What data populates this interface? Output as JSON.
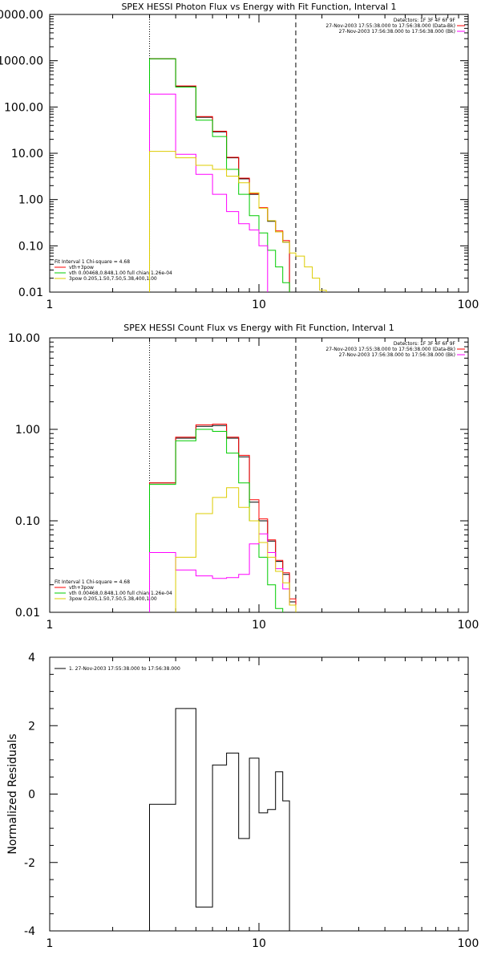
{
  "chart_data": [
    {
      "type": "line",
      "title": "SPEX HESSI Photon Flux vs Energy with Fit Function, Interval 1",
      "xscale": "log",
      "yscale": "log",
      "xlim": [
        1,
        100
      ],
      "ylim": [
        0.01,
        10000
      ],
      "x_ticks": [
        "1",
        "10",
        "100"
      ],
      "y_ticks": [
        "0.01",
        "0.10",
        "1.00",
        "10.00",
        "100.00",
        "1000.00",
        "10000.00"
      ],
      "vlines": [
        {
          "x": 3.0,
          "style": "dotted"
        },
        {
          "x": 15.0,
          "style": "dashed"
        }
      ],
      "legend_right": [
        "Detectors: 1F 3F 4F 6F 9F",
        "27-Nov-2003 17:55:38.000 to 17:56:38.000 (Data-Bk)",
        "27-Nov-2003 17:56:38.000 to 17:56:38.000 (Bk)"
      ],
      "legend_left": [
        "Fit Interval 1   Chi-square = 4.68",
        "vth+3pow",
        "vth 0.00468,0.848,1.00  full chian 1.26e-04",
        "3pow 0.205,1.50,7.50,5.38,400,1.00"
      ],
      "x_edges": [
        3,
        4,
        5,
        6,
        7,
        8,
        9,
        10,
        11,
        12,
        13,
        14,
        15,
        16.5,
        18,
        19.5,
        21,
        22.5,
        24
      ],
      "series": [
        {
          "color": "#000000",
          "values": [
            1100,
            280,
            60,
            29,
            8,
            2.8,
            1.3,
            0.65,
            0.34,
            0.2,
            0.12,
            null,
            null,
            null,
            null,
            null,
            null,
            null
          ]
        },
        {
          "color": "#ff0000",
          "values": [
            1100,
            285,
            62,
            30,
            8.2,
            2.9,
            1.35,
            0.67,
            0.35,
            0.21,
            0.13,
            null,
            null,
            null,
            null,
            null,
            null,
            null
          ]
        },
        {
          "color": "#00cc00",
          "values": [
            1100,
            270,
            52,
            23,
            4.5,
            1.3,
            0.45,
            0.19,
            0.08,
            0.035,
            0.016,
            0.006,
            null,
            null,
            null,
            null,
            null,
            null
          ]
        },
        {
          "color": "#ff00ff",
          "values": [
            190,
            9.5,
            3.5,
            1.3,
            0.55,
            0.3,
            0.22,
            0.1,
            null,
            null,
            null,
            null,
            null,
            null,
            null,
            null,
            null,
            null
          ]
        },
        {
          "color": "#ddcc00",
          "values": [
            11,
            8,
            5.5,
            4.5,
            3.2,
            2.3,
            1.4,
            0.65,
            0.35,
            0.2,
            0.12,
            0.07,
            0.06,
            0.035,
            0.02,
            0.011,
            0.006,
            null
          ]
        }
      ]
    },
    {
      "type": "line",
      "title": "SPEX HESSI Count Flux vs Energy with Fit Function, Interval 1",
      "xscale": "log",
      "yscale": "log",
      "xlim": [
        1,
        100
      ],
      "ylim": [
        0.01,
        10
      ],
      "x_ticks": [
        "1",
        "10",
        "100"
      ],
      "y_ticks": [
        "0.01",
        "0.10",
        "1.00",
        "10.00"
      ],
      "vlines": [
        {
          "x": 3.0,
          "style": "dotted"
        },
        {
          "x": 15.0,
          "style": "dashed"
        }
      ],
      "legend_right": [
        "Detectors: 1F 3F 4F 6F 9F",
        "27-Nov-2003 17:55:38.000 to 17:56:38.000 (Data-Bk)",
        "27-Nov-2003 17:56:38.000 to 17:56:38.000 (Bk)"
      ],
      "legend_left": [
        "Fit Interval 1   Chi-square = 4.68",
        "vth+3pow",
        "vth 0.00468,0.848,1.00  full chian 1.26e-04",
        "3pow 0.205,1.50,7.50,5.38,400,1.00"
      ],
      "x_edges": [
        3,
        4,
        5,
        6,
        7,
        8,
        9,
        10,
        11,
        12,
        13,
        14,
        15
      ],
      "series": [
        {
          "color": "#000000",
          "values": [
            0.26,
            0.8,
            1.08,
            1.1,
            0.8,
            0.5,
            0.16,
            0.1,
            0.06,
            0.036,
            0.026,
            0.013
          ]
        },
        {
          "color": "#ff0000",
          "values": [
            0.26,
            0.82,
            1.12,
            1.14,
            0.82,
            0.52,
            0.17,
            0.105,
            0.062,
            0.037,
            0.027,
            0.014
          ]
        },
        {
          "color": "#00cc00",
          "values": [
            0.25,
            0.75,
            1.0,
            0.95,
            0.55,
            0.26,
            0.1,
            0.04,
            0.02,
            0.011,
            null,
            null
          ]
        },
        {
          "color": "#ff00ff",
          "values": [
            0.045,
            0.029,
            0.025,
            0.0235,
            0.024,
            0.026,
            0.056,
            0.072,
            0.045,
            0.03,
            0.018,
            0.012
          ]
        },
        {
          "color": "#ddcc00",
          "values": [
            0.006,
            0.04,
            0.12,
            0.18,
            0.23,
            0.14,
            0.1,
            0.058,
            0.04,
            0.028,
            0.021,
            0.012
          ]
        }
      ]
    },
    {
      "type": "line",
      "title": "",
      "ylabel": "Normalized Residuals",
      "xscale": "log",
      "yscale": "linear",
      "xlim": [
        1,
        100
      ],
      "ylim": [
        -4,
        4
      ],
      "x_ticks": [
        "1",
        "10",
        "100"
      ],
      "y_ticks": [
        "-4",
        "-2",
        "0",
        "2",
        "4"
      ],
      "legend_left": [
        "1. 27-Nov-2003 17:55:38.000 to 17:56:38.000"
      ],
      "x_edges": [
        3,
        4,
        5,
        6,
        7,
        8,
        9,
        10,
        11,
        12,
        13,
        14,
        15
      ],
      "series": [
        {
          "color": "#000000",
          "values": [
            -0.3,
            2.5,
            -3.3,
            0.85,
            1.2,
            -1.3,
            1.05,
            -0.55,
            -0.45,
            0.65,
            -0.2,
            null
          ]
        }
      ]
    }
  ]
}
